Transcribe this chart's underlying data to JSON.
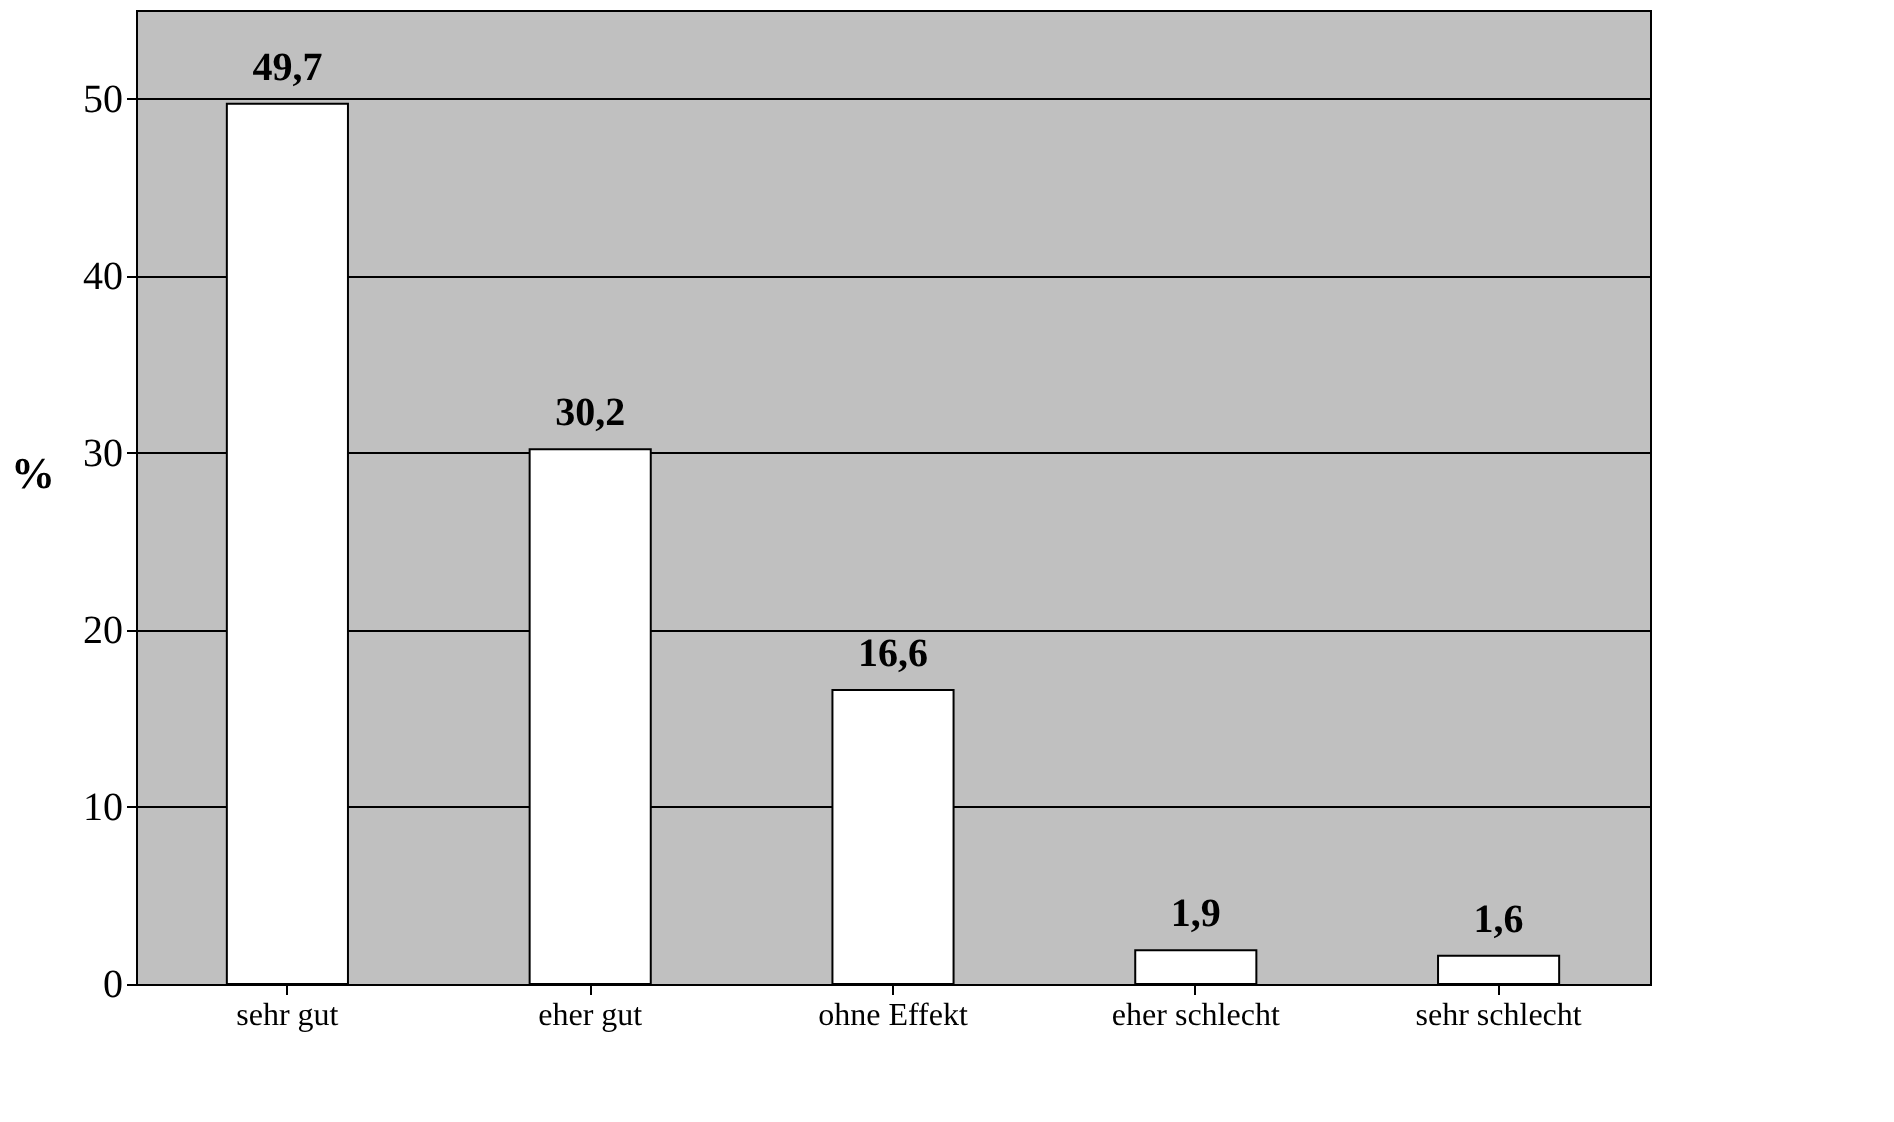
{
  "chart_data": {
    "type": "bar",
    "ylabel": "%",
    "categories": [
      "sehr gut",
      "eher gut",
      "ohne Effekt",
      "eher schlecht",
      "sehr schlecht"
    ],
    "values": [
      49.7,
      30.2,
      16.6,
      1.9,
      1.6
    ],
    "value_labels": [
      "49,7",
      "30,2",
      "16,6",
      "1,9",
      "1,6"
    ],
    "color": "#ffffff",
    "ylim": [
      0,
      55
    ],
    "yticks": [
      0,
      10,
      20,
      30,
      40,
      50
    ],
    "grid": "y"
  }
}
